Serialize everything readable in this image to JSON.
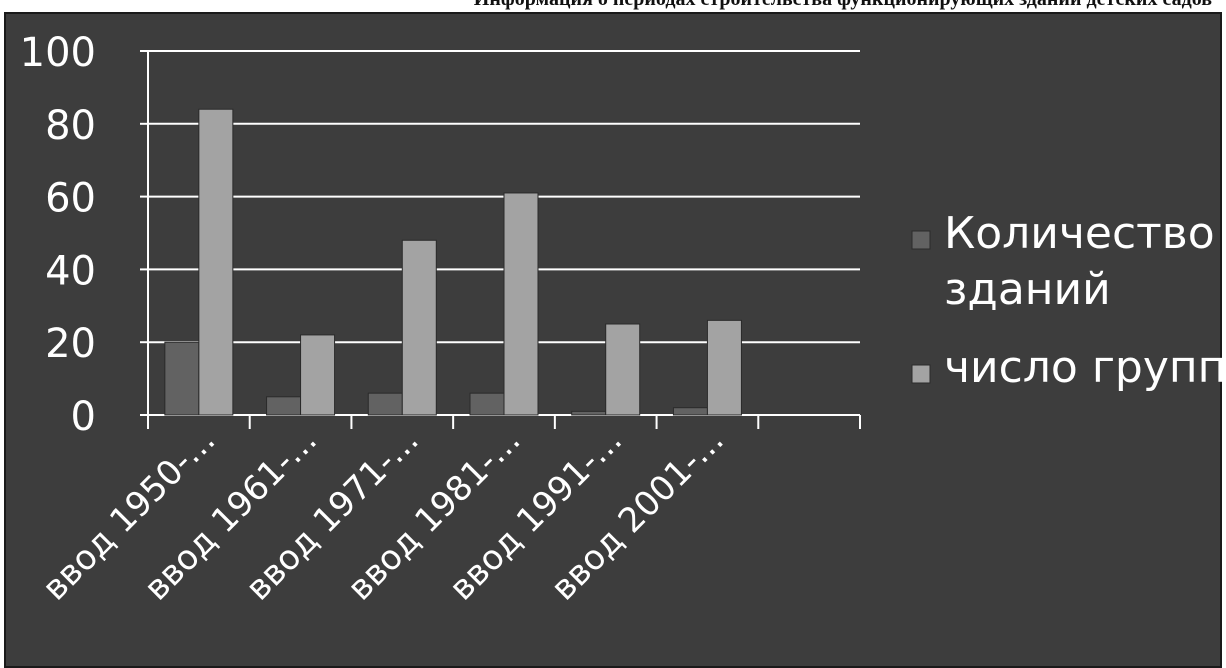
{
  "chart_data": {
    "type": "bar",
    "title": "Информация о периодах строительства функционирующих зданий детских садов",
    "categories": [
      "ввод 1950-...",
      "ввод 1961-...",
      "ввод 1971-...",
      "ввод 1981-...",
      "ввод 1991-...",
      "ввод 2001-...",
      ""
    ],
    "series": [
      {
        "name": "Количество зданий",
        "values": [
          20,
          5,
          6,
          6,
          1,
          2,
          0
        ],
        "color": "#626262"
      },
      {
        "name": "число групп",
        "values": [
          84,
          22,
          48,
          61,
          25,
          26,
          0
        ],
        "color": "#a3a3a3"
      }
    ],
    "ylim": [
      0,
      100
    ],
    "yticks": [
      0,
      20,
      40,
      60,
      80,
      100
    ],
    "grid": true,
    "legend_position": "right",
    "legend_lines": [
      [
        "Количество",
        "зданий"
      ],
      [
        "число групп"
      ]
    ],
    "colors": {
      "background": "#3d3d3d",
      "gridline": "#ffffff",
      "text": "#ffffff"
    }
  }
}
